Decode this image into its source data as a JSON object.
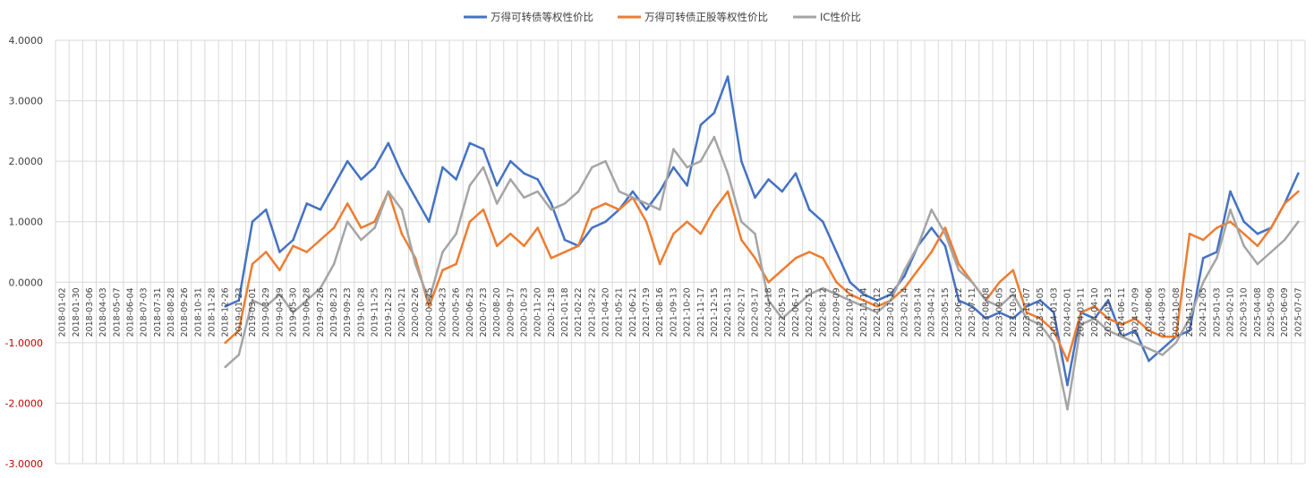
{
  "chart_data": {
    "type": "line",
    "title": "",
    "xlabel": "",
    "ylabel": "",
    "ylim": [
      -3,
      4
    ],
    "yticks": [
      "4.0000",
      "3.0000",
      "2.0000",
      "1.0000",
      "0.0000",
      "-1.0000",
      "-2.0000",
      "-3.0000"
    ],
    "negative_tick_color": "#c00000",
    "grid": true,
    "legend_position": "top",
    "x": [
      "2018-01-02",
      "2018-01-30",
      "2018-03-06",
      "2018-04-03",
      "2018-05-07",
      "2018-06-04",
      "2018-07-03",
      "2018-07-31",
      "2018-08-28",
      "2018-09-26",
      "2018-10-31",
      "2018-11-28",
      "2018-12-26",
      "2019-01-23",
      "2019-03-01",
      "2019-03-29",
      "2019-04-29",
      "2019-05-30",
      "2019-06-28",
      "2019-07-26",
      "2019-08-23",
      "2019-09-23",
      "2019-10-28",
      "2019-11-25",
      "2019-12-23",
      "2020-01-21",
      "2020-02-26",
      "2020-03-25",
      "2020-04-23",
      "2020-05-26",
      "2020-06-23",
      "2020-07-23",
      "2020-08-20",
      "2020-09-17",
      "2020-10-23",
      "2020-11-20",
      "2020-12-18",
      "2021-01-18",
      "2021-02-22",
      "2021-03-22",
      "2021-04-20",
      "2021-05-21",
      "2021-06-21",
      "2021-07-19",
      "2021-08-16",
      "2021-09-13",
      "2021-10-20",
      "2021-11-17",
      "2021-12-15",
      "2022-01-13",
      "2022-02-17",
      "2022-03-17",
      "2022-04-18",
      "2022-05-19",
      "2022-06-17",
      "2022-07-15",
      "2022-08-12",
      "2022-09-09",
      "2022-10-17",
      "2022-11-14",
      "2022-12-12",
      "2023-01-10",
      "2023-02-14",
      "2023-03-14",
      "2023-04-12",
      "2023-05-15",
      "2023-06-12",
      "2023-07-11",
      "2023-08-08",
      "2023-09-05",
      "2023-10-10",
      "2023-11-07",
      "2023-12-05",
      "2024-01-03",
      "2024-02-01",
      "2024-03-11",
      "2024-04-10",
      "2024-05-13",
      "2024-06-11",
      "2024-07-09",
      "2024-08-06",
      "2024-09-03",
      "2024-10-08",
      "2024-11-07",
      "2024-12-05",
      "2025-01-03",
      "2025-02-10",
      "2025-03-10",
      "2025-04-08",
      "2025-05-09",
      "2025-06-09",
      "2025-07-07"
    ],
    "series": [
      {
        "name": "万得可转债等权性价比",
        "color": "#4472c4",
        "values": [
          null,
          null,
          null,
          null,
          null,
          null,
          null,
          null,
          null,
          null,
          null,
          null,
          -0.4,
          -0.3,
          1.0,
          1.2,
          0.5,
          0.7,
          1.3,
          1.2,
          1.6,
          2.0,
          1.7,
          1.9,
          2.3,
          1.8,
          1.4,
          1.0,
          1.9,
          1.7,
          2.3,
          2.2,
          1.6,
          2.0,
          1.8,
          1.7,
          1.3,
          0.7,
          0.6,
          0.9,
          1.0,
          1.2,
          1.5,
          1.2,
          1.5,
          1.9,
          1.6,
          2.6,
          2.8,
          3.4,
          2.0,
          1.4,
          1.7,
          1.5,
          1.8,
          1.2,
          1.0,
          0.5,
          0.0,
          -0.2,
          -0.3,
          -0.2,
          0.1,
          0.6,
          0.9,
          0.6,
          -0.3,
          -0.4,
          -0.6,
          -0.5,
          -0.6,
          -0.4,
          -0.3,
          -0.5,
          -1.7,
          -0.5,
          -0.6,
          -0.3,
          -0.9,
          -0.8,
          -1.3,
          -1.1,
          -0.9,
          -0.8,
          0.4,
          0.5,
          1.5,
          1.0,
          0.8,
          0.9,
          1.3,
          1.8
        ]
      },
      {
        "name": "万得可转债正股等权性价比",
        "color": "#ed7d31",
        "values": [
          null,
          null,
          null,
          null,
          null,
          null,
          null,
          null,
          null,
          null,
          null,
          null,
          -1.0,
          -0.8,
          0.3,
          0.5,
          0.2,
          0.6,
          0.5,
          0.7,
          0.9,
          1.3,
          0.9,
          1.0,
          1.5,
          0.8,
          0.4,
          -0.4,
          0.2,
          0.3,
          1.0,
          1.2,
          0.6,
          0.8,
          0.6,
          0.9,
          0.4,
          0.5,
          0.6,
          1.2,
          1.3,
          1.2,
          1.4,
          1.0,
          0.3,
          0.8,
          1.0,
          0.8,
          1.2,
          1.5,
          0.7,
          0.4,
          0.0,
          0.2,
          0.4,
          0.5,
          0.4,
          0.0,
          -0.2,
          -0.3,
          -0.4,
          -0.3,
          -0.1,
          0.2,
          0.5,
          0.9,
          0.3,
          0.0,
          -0.3,
          0.0,
          0.2,
          -0.5,
          -0.6,
          -0.8,
          -1.3,
          -0.5,
          -0.4,
          -0.6,
          -0.7,
          -0.6,
          -0.8,
          -0.9,
          -0.9,
          0.8,
          0.7,
          0.9,
          1.0,
          0.8,
          0.6,
          0.9,
          1.3,
          1.5
        ]
      },
      {
        "name": "IC性价比",
        "color": "#a5a5a5",
        "values": [
          null,
          null,
          null,
          null,
          null,
          null,
          null,
          null,
          null,
          null,
          null,
          null,
          -1.4,
          -1.2,
          -0.3,
          -0.4,
          -0.2,
          -0.5,
          -0.3,
          -0.1,
          0.3,
          1.0,
          0.7,
          0.9,
          1.5,
          1.2,
          0.3,
          -0.3,
          0.5,
          0.8,
          1.6,
          1.9,
          1.3,
          1.7,
          1.4,
          1.5,
          1.2,
          1.3,
          1.5,
          1.9,
          2.0,
          1.5,
          1.4,
          1.3,
          1.2,
          2.2,
          1.9,
          2.0,
          2.4,
          1.8,
          1.0,
          0.8,
          -0.3,
          -0.6,
          -0.4,
          -0.2,
          -0.1,
          -0.2,
          -0.3,
          -0.4,
          -0.5,
          -0.3,
          0.2,
          0.6,
          1.2,
          0.8,
          0.2,
          0.0,
          -0.3,
          -0.4,
          -0.2,
          -0.6,
          -0.7,
          -1.0,
          -2.1,
          -0.7,
          -0.6,
          -0.8,
          -0.9,
          -1.0,
          -1.1,
          -1.2,
          -1.0,
          -0.6,
          0.0,
          0.4,
          1.2,
          0.6,
          0.3,
          0.5,
          0.7,
          1.0
        ]
      }
    ]
  }
}
